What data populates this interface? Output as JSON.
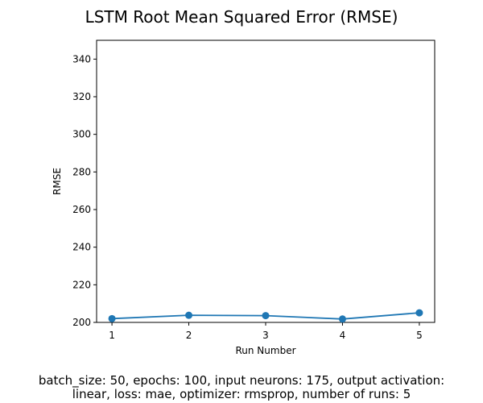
{
  "chart_data": {
    "type": "line",
    "title": "LSTM Root Mean Squared Error (RMSE)",
    "xlabel": "Run Number",
    "ylabel": "RMSE",
    "x": [
      1,
      2,
      3,
      4,
      5
    ],
    "series": [
      {
        "values": [
          202.0,
          203.8,
          203.6,
          201.8,
          205.1
        ],
        "color": "#1f77b4",
        "marker": "circle"
      }
    ],
    "xlim": [
      0.8,
      5.2
    ],
    "ylim": [
      200,
      350
    ],
    "xticks": [
      1,
      2,
      3,
      4,
      5
    ],
    "yticks": [
      200,
      220,
      240,
      260,
      280,
      300,
      320,
      340
    ],
    "grid": false,
    "legend": "none"
  },
  "caption": {
    "line1": "batch_size: 50, epochs: 100, input neurons: 175, output activation:",
    "line2": "linear, loss: mae, optimizer: rmsprop, number of runs: 5"
  }
}
